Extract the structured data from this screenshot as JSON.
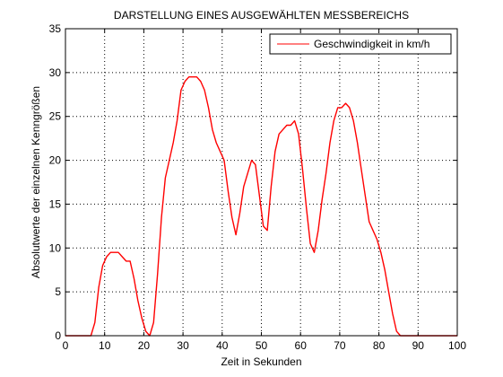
{
  "chart_data": {
    "type": "line",
    "title": "DARSTELLUNG EINES AUSGEWÄHLTEN MESSBEREICHS",
    "xlabel": "Zeit in Sekunden",
    "ylabel": "Absolutwerte der einzelnen Kenngrößen",
    "xlim": [
      0,
      100
    ],
    "ylim": [
      0,
      35
    ],
    "xticks": [
      0,
      10,
      20,
      30,
      40,
      50,
      60,
      70,
      80,
      90,
      100
    ],
    "yticks": [
      0,
      5,
      10,
      15,
      20,
      25,
      30,
      35
    ],
    "grid": true,
    "grid_style": "dotted",
    "legend_position": "top-right",
    "series": [
      {
        "name": "Geschwindigkeit in km/h",
        "color": "#ff0000",
        "x": [
          0,
          6.5,
          7.5,
          8.5,
          9.5,
          10.5,
          11.5,
          12.5,
          13.5,
          14.5,
          15.5,
          16.5,
          17.5,
          18.5,
          19.5,
          20.5,
          21.5,
          22.5,
          23.5,
          24.5,
          25.5,
          26.5,
          27.5,
          28.5,
          29.5,
          30.5,
          31.5,
          32.5,
          33.5,
          34.5,
          35.5,
          36.5,
          37.5,
          38.5,
          39.5,
          40.5,
          41.5,
          42.5,
          43.5,
          44.5,
          45.5,
          46.5,
          47.5,
          48.5,
          49.5,
          50.5,
          51.5,
          52.5,
          53.5,
          54.5,
          55.5,
          56.5,
          57.5,
          58.5,
          59.5,
          60.5,
          61.5,
          62.5,
          63.5,
          64.5,
          65.5,
          66.5,
          67.5,
          68.5,
          69.5,
          70.5,
          71.5,
          72.5,
          73.5,
          74.5,
          75.5,
          76.5,
          77.5,
          78.5,
          79.5,
          80.5,
          81.5,
          82.5,
          83.5,
          84.5,
          85.5,
          100
        ],
        "y": [
          0,
          0,
          1.5,
          5.5,
          8,
          9,
          9.5,
          9.5,
          9.5,
          9,
          8.5,
          8.5,
          6.5,
          4,
          2,
          0.5,
          0,
          1.5,
          7,
          13.5,
          18,
          20,
          22,
          24.5,
          28,
          29,
          29.5,
          29.5,
          29.5,
          29,
          28,
          26,
          23.5,
          22,
          21,
          20,
          16.5,
          13.5,
          11.5,
          14,
          17,
          18.5,
          20,
          19.5,
          16,
          12.5,
          12,
          17,
          21,
          23,
          23.5,
          24,
          24,
          24.5,
          23,
          19,
          14.5,
          10.5,
          9.5,
          12,
          15.5,
          18.5,
          22,
          24.5,
          26,
          26,
          26.5,
          26,
          24.5,
          22,
          19,
          16,
          13,
          12,
          11,
          9.5,
          7.5,
          5,
          2.5,
          0.5,
          0,
          0
        ]
      }
    ]
  }
}
